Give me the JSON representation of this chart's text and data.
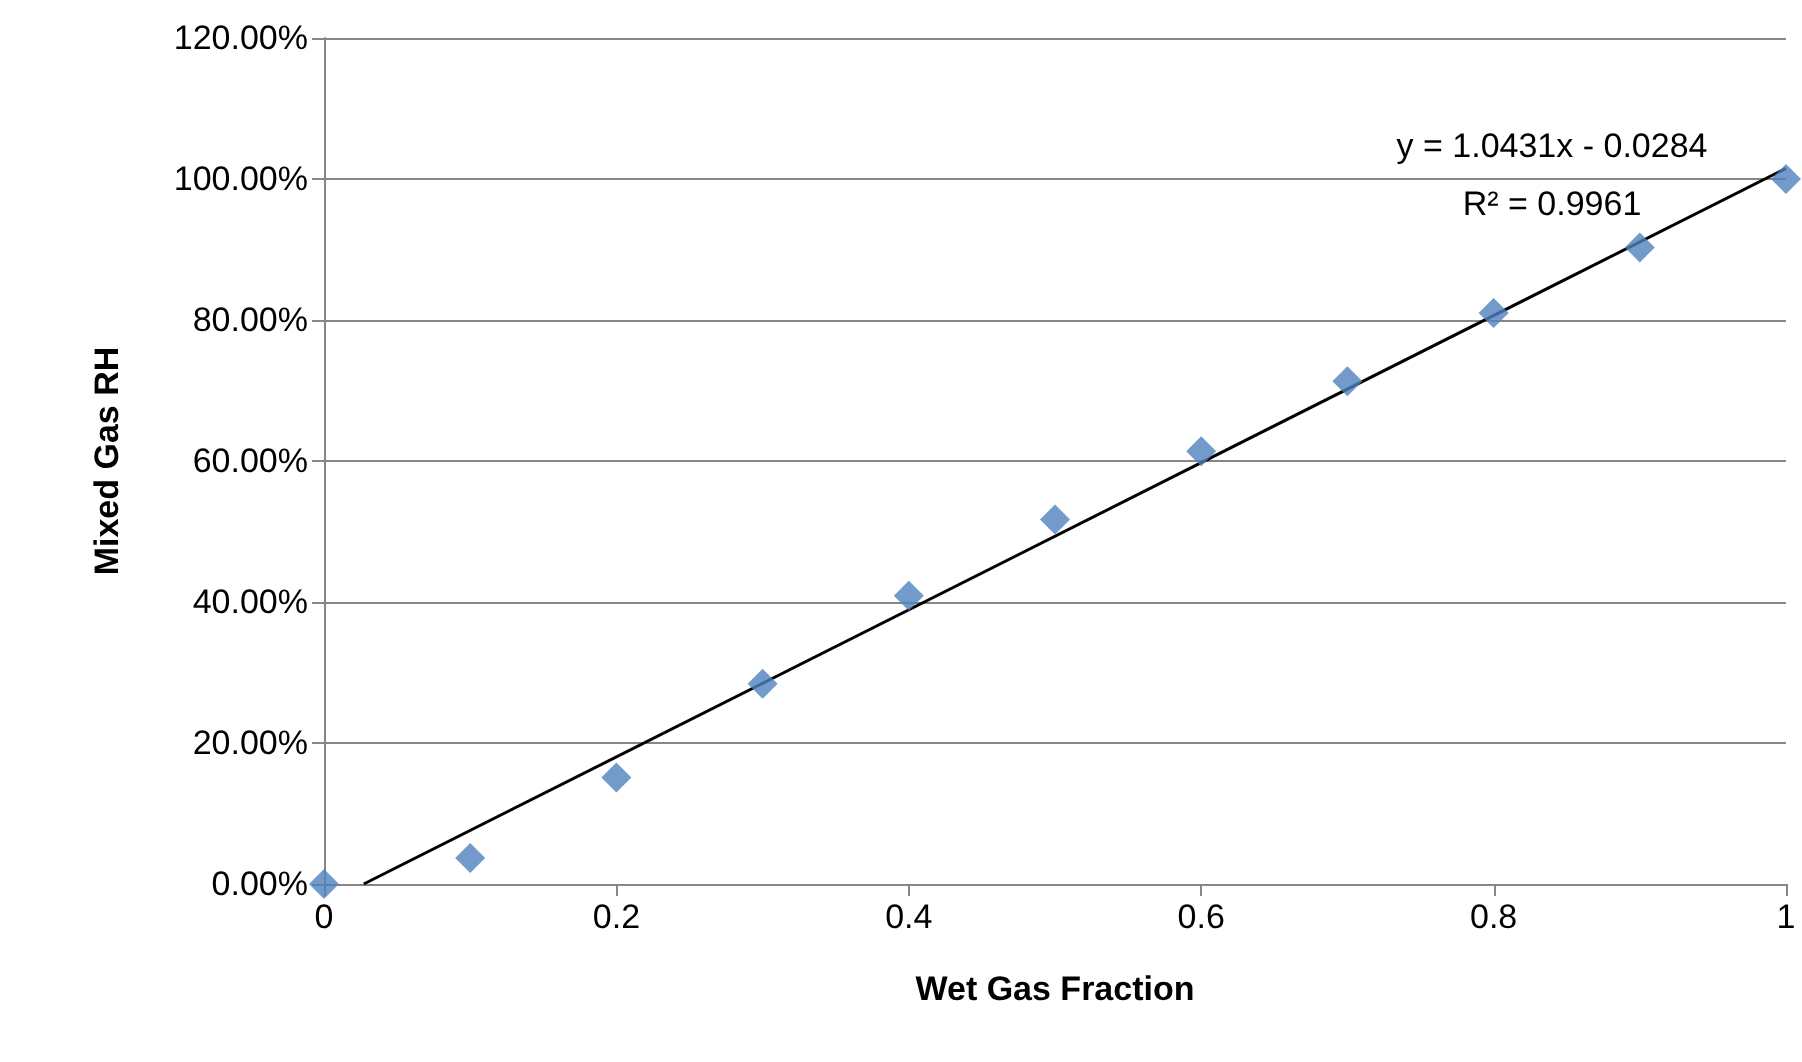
{
  "chart_data": {
    "type": "scatter",
    "xlabel": "Wet Gas Fraction",
    "ylabel": "Mixed Gas RH",
    "xlim": [
      0,
      1
    ],
    "xticks": [
      0,
      0.2,
      0.4,
      0.6,
      0.8,
      1
    ],
    "ylim": [
      0,
      1.2
    ],
    "yticks": [
      {
        "value": 0,
        "label": "0.00%"
      },
      {
        "value": 0.2,
        "label": "20.00%"
      },
      {
        "value": 0.4,
        "label": "40.00%"
      },
      {
        "value": 0.6,
        "label": "60.00%"
      },
      {
        "value": 0.8,
        "label": "80.00%"
      },
      {
        "value": 1,
        "label": "100.00%"
      },
      {
        "value": 1.2,
        "label": "120.00%"
      }
    ],
    "grid": "y",
    "marker": "diamond",
    "series": [
      {
        "color": "#4f81bd",
        "x": [
          0,
          0.1,
          0.2,
          0.3,
          0.4,
          0.5,
          0.6,
          0.7,
          0.8,
          0.9,
          1
        ],
        "values": [
          0,
          0.037,
          0.151,
          0.284,
          0.409,
          0.517,
          0.614,
          0.713,
          0.81,
          0.903,
          1.0
        ]
      },
      {
        "type": "line",
        "color": "#000000",
        "marker": "none",
        "x": [
          0.0272,
          1
        ],
        "values": [
          0,
          1.015
        ]
      }
    ],
    "annotations": [
      "y = 1.0431x - 0.0284",
      "R² = 0.9961"
    ]
  }
}
